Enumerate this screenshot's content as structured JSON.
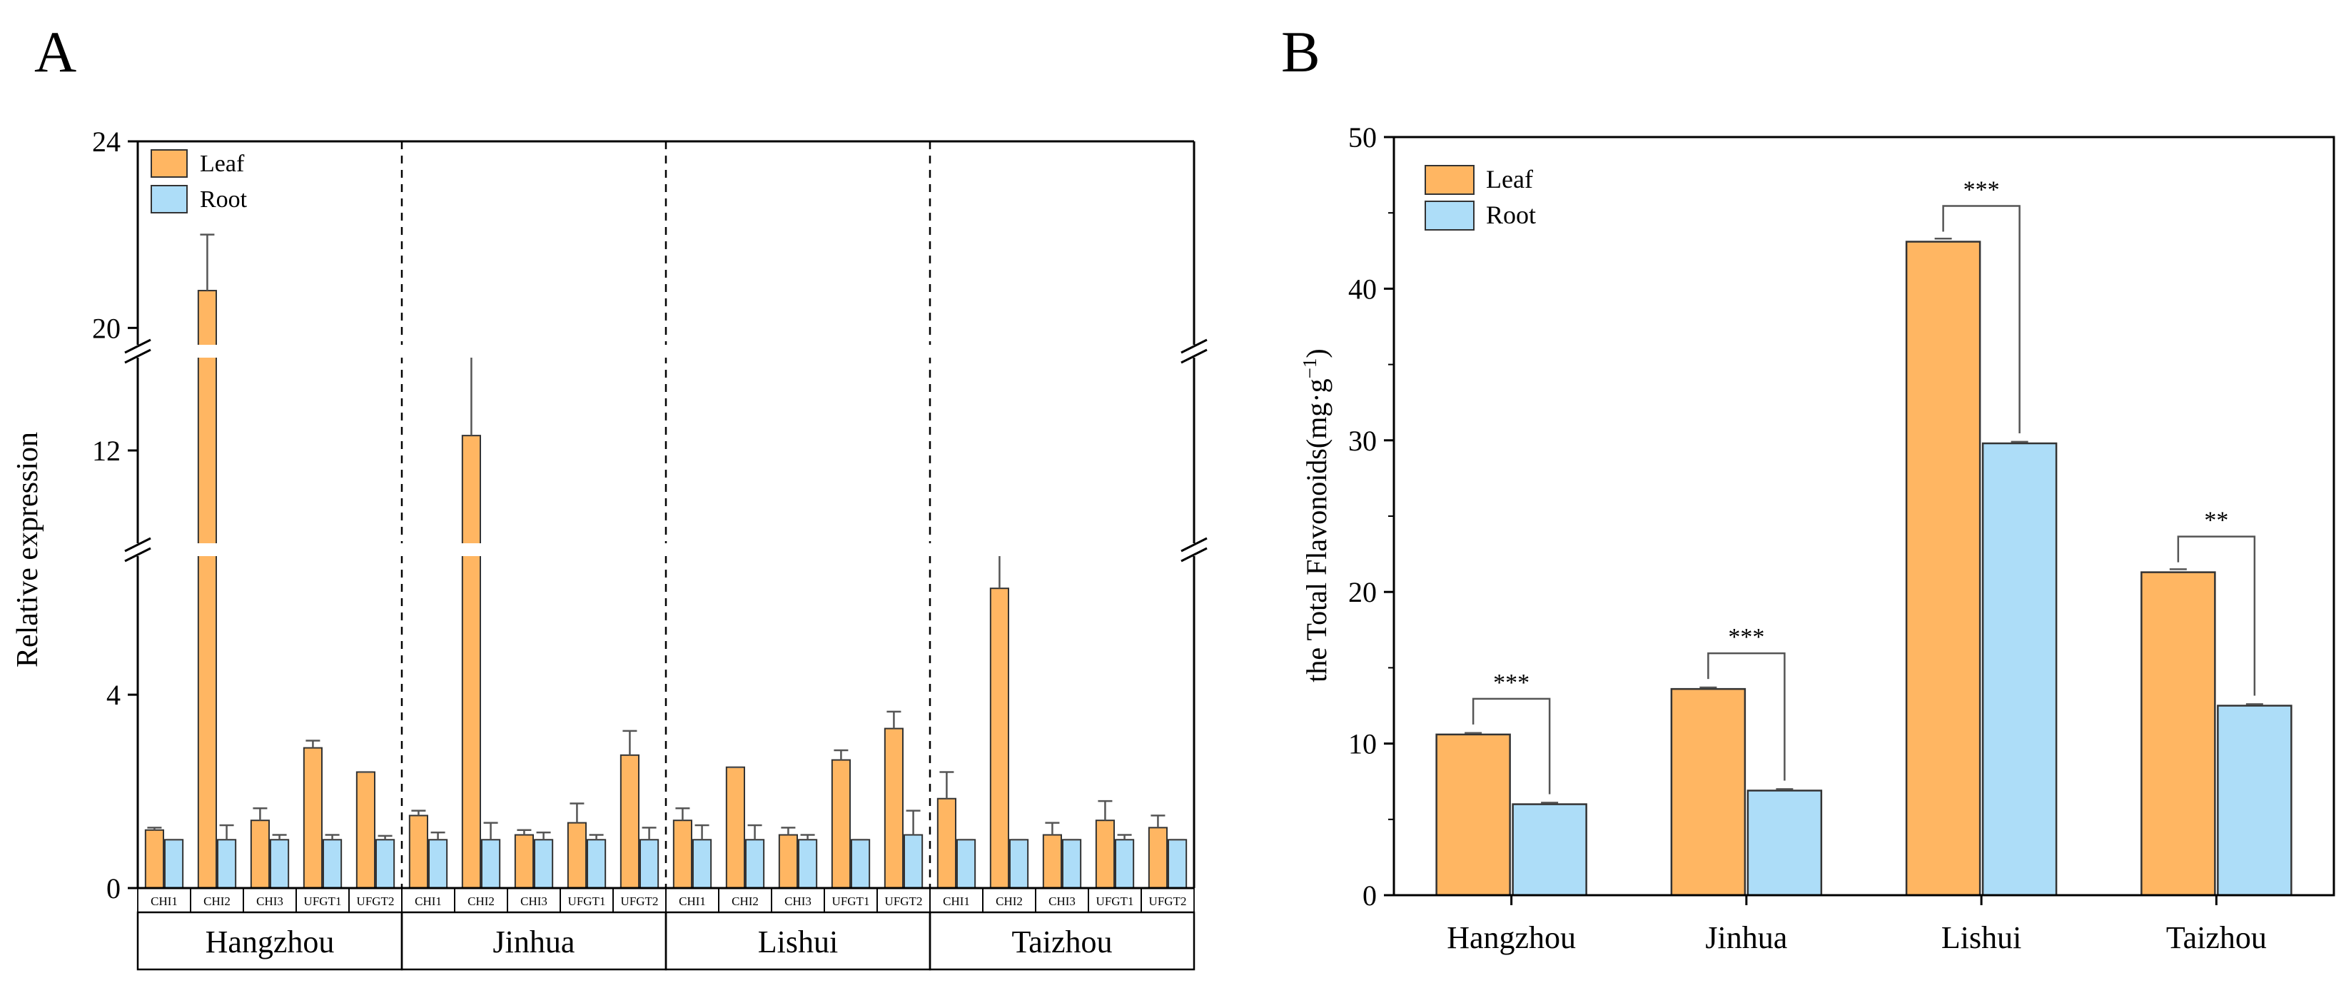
{
  "colors": {
    "leaf": "#FFB662",
    "root": "#ADDDF8",
    "axis": "#000000",
    "error": "#555555"
  },
  "chart_data": [
    {
      "panel_label": "A",
      "type": "bar",
      "ylabel": "Relative expression",
      "ylim": [
        0,
        24
      ],
      "axis_breaks": [
        [
          7,
          10
        ],
        [
          14,
          19.5
        ]
      ],
      "yticks": [
        0,
        4,
        12,
        20,
        24
      ],
      "legend": [
        "Leaf",
        "Root"
      ],
      "legend_position": "top-left",
      "groups": [
        {
          "name": "Hangzhou",
          "genes": [
            "CHI1",
            "CHI2",
            "CHI3",
            "UFGT1",
            "UFGT2"
          ],
          "leaf": [
            1.2,
            20.8,
            1.4,
            2.9,
            2.4
          ],
          "leaf_err": [
            0.05,
            1.2,
            0.25,
            0.15,
            0.0
          ],
          "root": [
            1.0,
            1.0,
            1.0,
            1.0,
            1.0
          ],
          "root_err": [
            0.0,
            0.3,
            0.1,
            0.1,
            0.08
          ]
        },
        {
          "name": "Jinhua",
          "genes": [
            "CHI1",
            "CHI2",
            "CHI3",
            "UFGT1",
            "UFGT2"
          ],
          "leaf": [
            1.5,
            12.3,
            1.1,
            1.35,
            2.75
          ],
          "leaf_err": [
            0.1,
            1.8,
            0.1,
            0.4,
            0.5
          ],
          "root": [
            1.0,
            1.0,
            1.0,
            1.0,
            1.0
          ],
          "root_err": [
            0.15,
            0.35,
            0.15,
            0.1,
            0.25
          ]
        },
        {
          "name": "Lishui",
          "genes": [
            "CHI1",
            "CHI2",
            "CHI3",
            "UFGT1",
            "UFGT2"
          ],
          "leaf": [
            1.4,
            2.5,
            1.1,
            2.65,
            3.3
          ],
          "leaf_err": [
            0.25,
            0.0,
            0.15,
            0.2,
            0.35
          ],
          "root": [
            1.0,
            1.0,
            1.0,
            1.0,
            1.1
          ],
          "root_err": [
            0.3,
            0.3,
            0.1,
            0.0,
            0.5
          ]
        },
        {
          "name": "Taizhou",
          "genes": [
            "CHI1",
            "CHI2",
            "CHI3",
            "UFGT1",
            "UFGT2"
          ],
          "leaf": [
            1.85,
            6.2,
            1.1,
            1.4,
            1.25
          ],
          "leaf_err": [
            0.55,
            1.1,
            0.25,
            0.4,
            0.25
          ],
          "root": [
            1.0,
            1.0,
            1.0,
            1.0,
            1.0
          ],
          "root_err": [
            0.0,
            0.0,
            0.0,
            0.1,
            0.0
          ]
        }
      ]
    },
    {
      "panel_label": "B",
      "type": "bar",
      "ylabel": "the Total Flavonoids(mg·g",
      "ylabel_sup": "−1",
      "ylabel_close": ")",
      "ylim": [
        0,
        50
      ],
      "yticks": [
        0,
        10,
        20,
        30,
        40,
        50
      ],
      "legend": [
        "Leaf",
        "Root"
      ],
      "legend_position": "top-left",
      "categories": [
        "Hangzhou",
        "Jinhua",
        "Lishui",
        "Taizhou"
      ],
      "series": [
        {
          "name": "Leaf",
          "values": [
            10.6,
            13.6,
            43.1,
            21.3
          ],
          "errors": [
            0.1,
            0.1,
            0.2,
            0.2
          ]
        },
        {
          "name": "Root",
          "values": [
            6.0,
            6.9,
            29.8,
            12.5
          ],
          "errors": [
            0.1,
            0.1,
            0.1,
            0.1
          ]
        }
      ],
      "significance": [
        "***",
        "***",
        "***",
        "**"
      ]
    }
  ]
}
